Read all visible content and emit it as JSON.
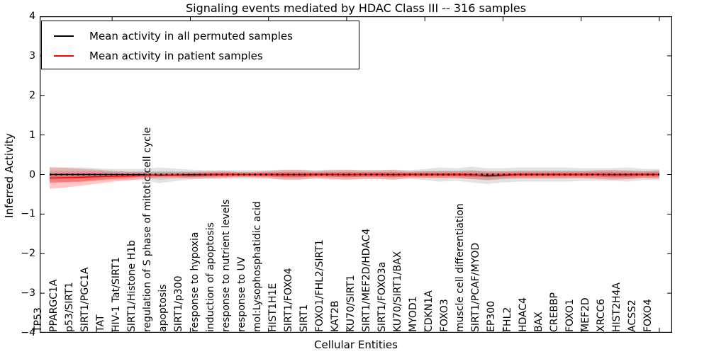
{
  "chart": {
    "title": "Signaling events mediated by HDAC Class III -- 316 samples",
    "xlabel": "Cellular Entities",
    "ylabel": "Inferred Activity",
    "y_ticks": [
      "4",
      "3",
      "2",
      "1",
      "0",
      "−1",
      "−2",
      "−3",
      "−4"
    ],
    "legend": {
      "items": [
        {
          "label": "Mean activity in all permuted samples",
          "color": "#000000"
        },
        {
          "label": "Mean activity in patient samples",
          "color": "#ff0000"
        }
      ]
    }
  },
  "chart_data": {
    "type": "line",
    "title": "Signaling events mediated by HDAC Class III -- 316 samples",
    "xlabel": "Cellular Entities",
    "ylabel": "Inferred Activity",
    "ylim": [
      -4,
      4
    ],
    "grid": false,
    "legend_position": "upper left",
    "zero_line": true,
    "categories": [
      "TP53",
      "PPARGC1A",
      "p53/SIRT1",
      "SIRT1/PGC1A",
      "TAT",
      "HIV-1 Tat/SIRT1",
      "SIRT1/Histone H1b",
      "regulation of S phase of mitotic cell cycle",
      "apoptosis",
      "SIRT1/p300",
      "response to hypoxia",
      "induction of apoptosis",
      "response to nutrient levels",
      "response to UV",
      "mol:Lysophosphatidic acid",
      "HIST1H1E",
      "SIRT1/FOXO4",
      "SIRT1",
      "FOXO1/FHL2/SIRT1",
      "KAT2B",
      "KU70/SIRT1",
      "SIRT1/MEF2D/HDAC4",
      "SIRT1/FOXO3a",
      "KU70/SIRT1/BAX",
      "MYOD1",
      "CDKN1A",
      "FOXO3",
      "muscle cell differentiation",
      "SIRT1/PCAF/MYOD",
      "EP300",
      "FHL2",
      "HDAC4",
      "BAX",
      "CREBBP",
      "FOXO1",
      "MEF2D",
      "XRCC6",
      "HIST2H4A",
      "ACSS2",
      "FOXO4"
    ],
    "series": [
      {
        "name": "Mean activity in all permuted samples",
        "color": "#000000",
        "values": [
          0,
          0,
          0,
          0,
          0,
          0,
          0,
          -0.02,
          -0.01,
          0,
          0,
          0,
          0,
          0,
          0,
          0,
          0,
          0,
          0,
          0,
          0,
          0,
          0,
          0,
          0,
          0,
          0,
          0,
          -0.04,
          -0.02,
          0,
          0,
          0,
          0,
          0,
          0,
          0,
          0,
          0,
          0
        ],
        "band_inner": [
          0.09,
          0.09,
          0.09,
          0.09,
          0.07,
          0.07,
          0.07,
          0.11,
          0.09,
          0.07,
          0.06,
          0.06,
          0.06,
          0.06,
          0.06,
          0.07,
          0.07,
          0.06,
          0.07,
          0.07,
          0.06,
          0.06,
          0.07,
          0.06,
          0.08,
          0.09,
          0.09,
          0.11,
          0.11,
          0.1,
          0.1,
          0.1,
          0.1,
          0.1,
          0.09,
          0.09,
          0.09,
          0.1,
          0.08,
          0.08
        ],
        "band_outer": [
          0.18,
          0.18,
          0.18,
          0.16,
          0.14,
          0.14,
          0.14,
          0.2,
          0.16,
          0.125,
          0.11,
          0.11,
          0.11,
          0.11,
          0.11,
          0.125,
          0.125,
          0.11,
          0.125,
          0.125,
          0.11,
          0.11,
          0.125,
          0.11,
          0.14,
          0.18,
          0.16,
          0.2,
          0.2,
          0.18,
          0.18,
          0.18,
          0.18,
          0.18,
          0.16,
          0.16,
          0.16,
          0.18,
          0.14,
          0.14
        ]
      },
      {
        "name": "Mean activity in patient samples",
        "color": "#ff0000",
        "values": [
          -0.09,
          -0.08,
          -0.07,
          -0.054,
          -0.045,
          -0.036,
          -0.018,
          -0.009,
          -0.009,
          -0.018,
          -0.009,
          0,
          0,
          0,
          0,
          -0.009,
          -0.009,
          0,
          0,
          -0.009,
          0,
          0,
          -0.009,
          0,
          0,
          0,
          0,
          -0.009,
          -0.018,
          -0.009,
          0,
          0,
          0,
          0,
          0,
          0,
          -0.009,
          -0.009,
          0,
          0
        ],
        "band_inner": [
          0.125,
          0.115,
          0.11,
          0.09,
          0.07,
          0.054,
          0.045,
          0.036,
          0.036,
          0.045,
          0.045,
          0.045,
          0.036,
          0.036,
          0.045,
          0.063,
          0.063,
          0.045,
          0.054,
          0.063,
          0.054,
          0.054,
          0.063,
          0.045,
          0.045,
          0.045,
          0.045,
          0.054,
          0.054,
          0.045,
          0.045,
          0.045,
          0.045,
          0.045,
          0.045,
          0.054,
          0.063,
          0.054,
          0.045,
          0.054
        ],
        "band_outer": [
          0.27,
          0.25,
          0.215,
          0.18,
          0.14,
          0.11,
          0.09,
          0.07,
          0.07,
          0.09,
          0.09,
          0.09,
          0.07,
          0.07,
          0.09,
          0.125,
          0.125,
          0.09,
          0.11,
          0.125,
          0.11,
          0.11,
          0.125,
          0.09,
          0.09,
          0.09,
          0.09,
          0.11,
          0.11,
          0.09,
          0.09,
          0.09,
          0.09,
          0.09,
          0.09,
          0.11,
          0.125,
          0.11,
          0.09,
          0.11
        ]
      }
    ]
  }
}
